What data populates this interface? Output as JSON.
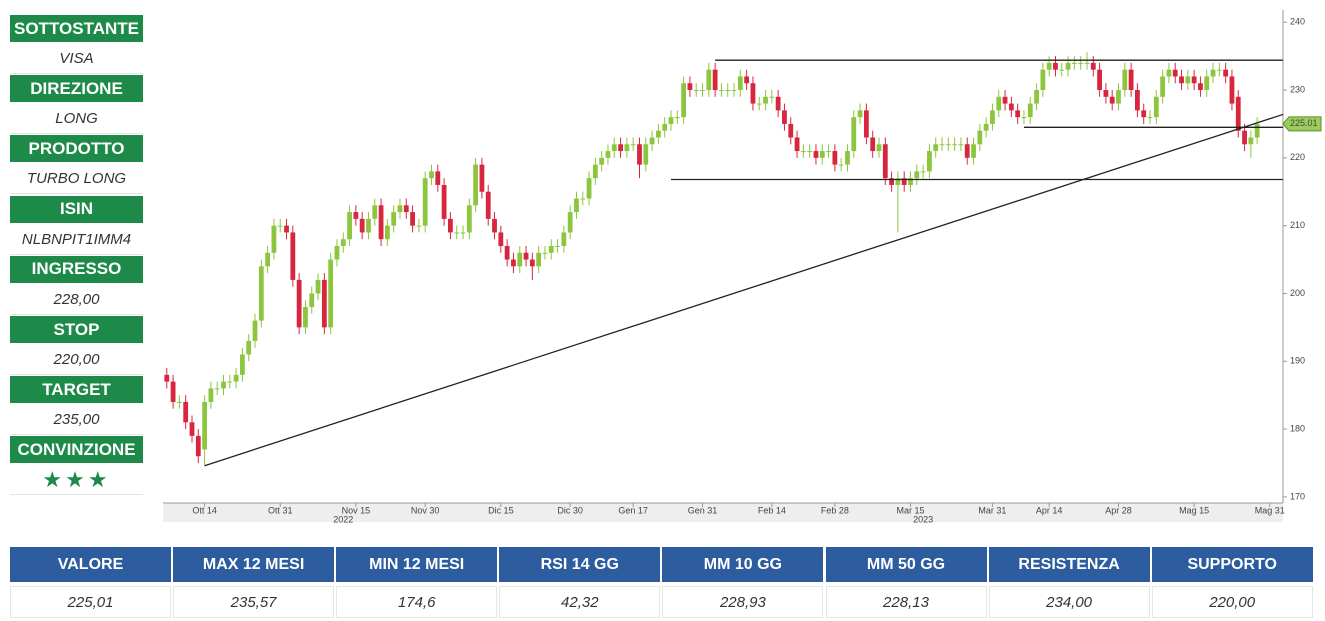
{
  "sidebar": [
    {
      "label": "SOTTOSTANTE",
      "value": "VISA"
    },
    {
      "label": "DIREZIONE",
      "value": "LONG"
    },
    {
      "label": "PRODOTTO",
      "value": "TURBO LONG"
    },
    {
      "label": "ISIN",
      "value": "NLBNPIT1IMM4"
    },
    {
      "label": "INGRESSO",
      "value": "228,00"
    },
    {
      "label": "STOP",
      "value": "220,00"
    },
    {
      "label": "TARGET",
      "value": "235,00"
    },
    {
      "label": "CONVINZIONE",
      "value": "★★★"
    }
  ],
  "chart_data": {
    "type": "candlestick",
    "up_color": "#8cc63f",
    "down_color": "#d7263d",
    "open": [
      188,
      187,
      184,
      184,
      181,
      179,
      177,
      184,
      186,
      186,
      187,
      187,
      188,
      191,
      193,
      196,
      204,
      206,
      210,
      210,
      209,
      202,
      195,
      198,
      200,
      202,
      195,
      205,
      207,
      208,
      212,
      211,
      209,
      211,
      213,
      208,
      210,
      212,
      213,
      212,
      210,
      210,
      217,
      218,
      216,
      211,
      209,
      209,
      209,
      213,
      219,
      215,
      211,
      209,
      207,
      205,
      204,
      206,
      205,
      204,
      206,
      206,
      207,
      207,
      209,
      212,
      214,
      214,
      217,
      219,
      220,
      221,
      222,
      221,
      222,
      222,
      219,
      222,
      223,
      224,
      225,
      226,
      226,
      231,
      230,
      230,
      230,
      233,
      230,
      230,
      230,
      230,
      232,
      231,
      228,
      228,
      229,
      229,
      227,
      225,
      223,
      221,
      221,
      221,
      220,
      221,
      221,
      219,
      219,
      221,
      226,
      227,
      223,
      221,
      222,
      217,
      216,
      217,
      216,
      217,
      218,
      218,
      221,
      222,
      222,
      222,
      222,
      222,
      220,
      222,
      224,
      225,
      227,
      229,
      228,
      227,
      226,
      226,
      228,
      230,
      233,
      234,
      233,
      233,
      234,
      234,
      234,
      234,
      233,
      230,
      229,
      228,
      230,
      233,
      230,
      227,
      226,
      226,
      229,
      232,
      233,
      232,
      231,
      232,
      231,
      230,
      232,
      233,
      233,
      232,
      229,
      224,
      222,
      223
    ],
    "high": [
      189,
      188,
      185,
      185,
      182,
      180,
      185,
      187,
      187,
      188,
      188,
      189,
      192,
      194,
      197,
      205,
      207,
      211,
      211,
      211,
      210,
      203,
      199,
      201,
      203,
      203,
      206,
      208,
      209,
      213,
      213,
      212,
      212,
      214,
      214,
      211,
      213,
      214,
      214,
      213,
      211,
      218,
      219,
      219,
      217,
      212,
      210,
      210,
      214,
      220,
      220,
      216,
      212,
      210,
      208,
      206,
      207,
      207,
      206,
      207,
      207,
      208,
      208,
      210,
      213,
      215,
      215,
      218,
      220,
      221,
      222,
      223,
      223,
      223,
      223,
      223,
      223,
      224,
      225,
      226,
      227,
      227,
      232,
      232,
      231,
      231,
      234,
      234,
      231,
      231,
      231,
      233,
      233,
      232,
      229,
      230,
      230,
      230,
      228,
      226,
      224,
      222,
      222,
      222,
      222,
      222,
      222,
      220,
      222,
      227,
      228,
      228,
      224,
      223,
      223,
      218,
      218,
      218,
      218,
      219,
      219,
      222,
      223,
      223,
      223,
      223,
      223,
      223,
      223,
      225,
      226,
      228,
      230,
      230,
      229,
      228,
      227,
      229,
      231,
      234,
      235,
      235,
      234,
      235,
      235,
      235,
      235.57,
      235,
      234,
      231,
      230,
      231,
      234,
      234,
      231,
      228,
      227,
      230,
      233,
      234,
      234,
      233,
      233,
      233,
      232,
      233,
      234,
      234,
      234,
      233,
      230,
      225,
      224,
      226
    ],
    "low": [
      186,
      183,
      183,
      180,
      178,
      175,
      174.6,
      183,
      185,
      185,
      186,
      186,
      187,
      190,
      192,
      195,
      203,
      205,
      209,
      208,
      201,
      194,
      194,
      197,
      199,
      194,
      194,
      204,
      206,
      207,
      210,
      208,
      208,
      210,
      207,
      207,
      209,
      211,
      211,
      209,
      209,
      209,
      216,
      215,
      210,
      208,
      208,
      208,
      208,
      212,
      214,
      210,
      208,
      206,
      204,
      203,
      203,
      204,
      202,
      203,
      205,
      205,
      206,
      206,
      208,
      211,
      213,
      213,
      216,
      218,
      219,
      220,
      220,
      220,
      221,
      217,
      218,
      221,
      222,
      223,
      224,
      225,
      225,
      229,
      229,
      229,
      229,
      229,
      229,
      229,
      229,
      229,
      230,
      227,
      227,
      227,
      228,
      226,
      224,
      222,
      220,
      220,
      220,
      219,
      219,
      220,
      218,
      218,
      218,
      220,
      225,
      222,
      220,
      220,
      216,
      215,
      209,
      215,
      215,
      216,
      217,
      217,
      220,
      221,
      221,
      221,
      221,
      219,
      219,
      221,
      223,
      224,
      226,
      227,
      226,
      225,
      225,
      225,
      227,
      229,
      232,
      232,
      232,
      232,
      233,
      233,
      233,
      232,
      229,
      228,
      227,
      227,
      229,
      229,
      226,
      225,
      225,
      225,
      228,
      231,
      231,
      230,
      230,
      230,
      229,
      229,
      231,
      232,
      231,
      227,
      223,
      221,
      220,
      222
    ],
    "close": [
      187,
      184,
      184,
      181,
      179,
      176,
      184,
      186,
      186,
      187,
      187,
      188,
      191,
      193,
      196,
      204,
      206,
      210,
      210,
      209,
      202,
      195,
      198,
      200,
      202,
      195,
      205,
      207,
      208,
      212,
      211,
      209,
      211,
      213,
      208,
      210,
      212,
      213,
      212,
      210,
      210,
      217,
      218,
      216,
      211,
      209,
      209,
      209,
      213,
      219,
      215,
      211,
      209,
      207,
      205,
      204,
      206,
      205,
      204,
      206,
      206,
      207,
      207,
      209,
      212,
      214,
      214,
      217,
      219,
      220,
      221,
      222,
      221,
      222,
      222,
      219,
      222,
      223,
      224,
      225,
      226,
      226,
      231,
      230,
      230,
      230,
      233,
      230,
      230,
      230,
      230,
      232,
      231,
      228,
      228,
      229,
      229,
      227,
      225,
      223,
      221,
      221,
      221,
      220,
      221,
      221,
      219,
      219,
      221,
      226,
      227,
      223,
      221,
      222,
      217,
      216,
      217,
      216,
      217,
      218,
      218,
      221,
      222,
      222,
      222,
      222,
      222,
      220,
      222,
      224,
      225,
      227,
      229,
      228,
      227,
      226,
      226,
      228,
      230,
      233,
      234,
      233,
      233,
      234,
      234,
      234,
      234,
      233,
      230,
      229,
      228,
      230,
      233,
      230,
      227,
      226,
      226,
      229,
      232,
      233,
      232,
      231,
      232,
      231,
      230,
      232,
      233,
      233,
      232,
      228,
      224,
      222,
      223,
      225
    ],
    "ylim": [
      169.1,
      241.8
    ],
    "yticks": [
      170,
      180,
      190,
      200,
      210,
      220,
      230,
      240
    ],
    "xlim": [
      -0.6,
      177.1
    ],
    "xticks": [
      {
        "value": 6,
        "label": "Ott 14"
      },
      {
        "value": 18,
        "label": "Ott 31"
      },
      {
        "value": 30,
        "label": "Nov 15"
      },
      {
        "value": 41,
        "label": "Nov 30"
      },
      {
        "value": 53,
        "label": "Dic 15"
      },
      {
        "value": 64,
        "label": "Dic 30"
      },
      {
        "value": 74,
        "label": "Gen 17"
      },
      {
        "value": 85,
        "label": "Gen 31"
      },
      {
        "value": 96,
        "label": "Feb 14"
      },
      {
        "value": 106,
        "label": "Feb 28"
      },
      {
        "value": 118,
        "label": "Mar 15"
      },
      {
        "value": 131,
        "label": "Mar 31"
      },
      {
        "value": 140,
        "label": "Apr 14"
      },
      {
        "value": 151,
        "label": "Apr 28"
      },
      {
        "value": 163,
        "label": "Mag 15"
      },
      {
        "value": 175,
        "label": "Mag 31"
      }
    ],
    "year_labels": [
      {
        "value": 28,
        "label": "2022"
      },
      {
        "value": 120,
        "label": "2023"
      }
    ],
    "last_price": {
      "value": 225.01,
      "label": "225.01"
    },
    "lines": [
      {
        "x": [
          87,
          177.1
        ],
        "y": [
          234.4,
          234.4
        ]
      },
      {
        "x": [
          80,
          177.1
        ],
        "y": [
          216.8,
          216.8
        ]
      },
      {
        "x": [
          136,
          177.1
        ],
        "y": [
          224.5,
          224.5
        ]
      },
      {
        "x": [
          6,
          177.1
        ],
        "y": [
          174.6,
          226.4
        ]
      }
    ]
  },
  "table": {
    "headers": [
      "VALORE",
      "MAX 12 MESI",
      "MIN 12 MESI",
      "RSI 14 GG",
      "MM 10 GG",
      "MM 50 GG",
      "RESISTENZA",
      "SUPPORTO"
    ],
    "values": [
      "225,01",
      "235,57",
      "174,6",
      "42,32",
      "228,93",
      "228,13",
      "234,00",
      "220,00"
    ]
  }
}
